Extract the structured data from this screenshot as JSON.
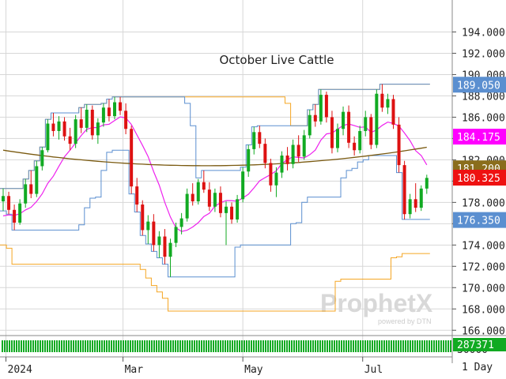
{
  "chart_data": {
    "type": "candlestick",
    "title": "October Live Cattle",
    "ylim": [
      165.5,
      197.0
    ],
    "y_ticks": [
      "194.000",
      "192.000",
      "190.000",
      "188.000",
      "186.000",
      "184.000",
      "182.000",
      "180.000",
      "178.000",
      "176.000",
      "174.000",
      "172.000",
      "170.000",
      "168.000",
      "166.000"
    ],
    "y_tick_values": [
      194,
      192,
      190,
      188,
      186,
      184,
      182,
      180,
      178,
      176,
      174,
      172,
      170,
      168,
      166
    ],
    "x_labels": [
      {
        "label": "2024",
        "x": 0.5
      },
      {
        "label": "Mar",
        "x": 21.5
      },
      {
        "label": "May",
        "x": 43
      },
      {
        "label": "Jul",
        "x": 64.5
      }
    ],
    "x_range": [
      0,
      80
    ],
    "price_badges": [
      {
        "label": "189.050",
        "value": 189.05,
        "bg": "#5b8fd0",
        "fg": "#ffffff"
      },
      {
        "label": "184.175",
        "value": 184.175,
        "bg": "#ff00ff",
        "fg": "#ffffff"
      },
      {
        "label": "181.200",
        "value": 181.2,
        "bg": "#8a6d1c",
        "fg": "#ffffff"
      },
      {
        "label": "180.325",
        "value": 180.325,
        "bg": "#ee1111",
        "fg": "#ffffff"
      },
      {
        "label": "176.350",
        "value": 176.35,
        "bg": "#5b8fd0",
        "fg": "#ffffff"
      }
    ],
    "volume_label": "287371",
    "volume_axis_label": "30000",
    "period_label": "1 Day",
    "watermark": "ProphetX",
    "watermark_sub": "powered by DTN",
    "colors": {
      "up": "#11aa22",
      "down": "#dd1111",
      "ma_short": "#ee22ee",
      "ma_long": "#7a5a10",
      "band_upper": "#f5a623",
      "band_inner": "#5b8fd0",
      "grid": "#d7d7d7"
    },
    "ma_short_label": "",
    "candles": [
      [
        178.1,
        179.3,
        177.2,
        178.6
      ],
      [
        178.6,
        179.0,
        176.9,
        177.3
      ],
      [
        177.3,
        177.8,
        175.4,
        176.1
      ],
      [
        176.1,
        178.3,
        175.9,
        177.9
      ],
      [
        177.9,
        180.2,
        177.5,
        179.7
      ],
      [
        179.7,
        181.0,
        178.4,
        178.8
      ],
      [
        178.8,
        181.9,
        178.5,
        181.4
      ],
      [
        181.4,
        183.2,
        181.0,
        182.9
      ],
      [
        182.9,
        185.8,
        182.7,
        185.4
      ],
      [
        185.4,
        186.4,
        184.2,
        184.7
      ],
      [
        184.7,
        186.1,
        183.9,
        185.6
      ],
      [
        185.6,
        186.0,
        183.8,
        184.2
      ],
      [
        184.2,
        185.0,
        182.9,
        183.5
      ],
      [
        183.5,
        186.2,
        183.1,
        185.8
      ],
      [
        185.8,
        186.9,
        184.5,
        185.0
      ],
      [
        185.0,
        187.2,
        184.6,
        186.7
      ],
      [
        186.7,
        187.1,
        183.9,
        184.3
      ],
      [
        184.3,
        185.9,
        183.5,
        185.5
      ],
      [
        185.5,
        187.3,
        185.1,
        186.9
      ],
      [
        186.9,
        187.7,
        185.6,
        186.1
      ],
      [
        186.1,
        187.9,
        185.8,
        187.4
      ],
      [
        187.4,
        187.9,
        186.2,
        186.6
      ],
      [
        186.6,
        187.3,
        184.4,
        184.9
      ],
      [
        184.9,
        185.2,
        178.8,
        179.5
      ],
      [
        179.5,
        180.3,
        177.1,
        177.8
      ],
      [
        177.8,
        178.2,
        174.9,
        175.4
      ],
      [
        175.4,
        176.8,
        174.1,
        176.2
      ],
      [
        176.2,
        176.9,
        173.4,
        174.0
      ],
      [
        174.0,
        175.3,
        172.8,
        174.8
      ],
      [
        174.8,
        175.5,
        172.2,
        172.9
      ],
      [
        172.9,
        174.6,
        171.0,
        174.2
      ],
      [
        174.2,
        176.1,
        173.8,
        175.7
      ],
      [
        175.7,
        177.0,
        175.0,
        176.5
      ],
      [
        176.5,
        179.3,
        176.2,
        178.8
      ],
      [
        178.8,
        179.8,
        177.7,
        178.1
      ],
      [
        178.1,
        180.2,
        177.8,
        179.9
      ],
      [
        179.9,
        181.0,
        178.9,
        179.2
      ],
      [
        179.2,
        179.9,
        177.2,
        177.6
      ],
      [
        177.6,
        179.3,
        177.1,
        178.9
      ],
      [
        178.9,
        179.5,
        176.6,
        177.0
      ],
      [
        177.0,
        178.1,
        174.0,
        177.6
      ],
      [
        177.6,
        178.0,
        176.0,
        176.4
      ],
      [
        176.4,
        178.7,
        176.1,
        178.3
      ],
      [
        178.3,
        181.3,
        178.0,
        180.9
      ],
      [
        180.9,
        183.4,
        180.4,
        183.0
      ],
      [
        183.0,
        185.1,
        182.5,
        184.6
      ],
      [
        184.6,
        185.2,
        183.1,
        183.5
      ],
      [
        183.5,
        184.0,
        181.2,
        181.7
      ],
      [
        181.7,
        182.1,
        179.0,
        179.6
      ],
      [
        179.6,
        181.3,
        178.5,
        180.8
      ],
      [
        180.8,
        182.8,
        180.3,
        182.4
      ],
      [
        182.4,
        183.2,
        181.0,
        181.6
      ],
      [
        181.6,
        183.9,
        181.2,
        183.4
      ],
      [
        183.4,
        184.3,
        181.8,
        182.3
      ],
      [
        182.3,
        184.8,
        182.0,
        184.3
      ],
      [
        184.3,
        186.7,
        184.0,
        186.2
      ],
      [
        186.2,
        187.2,
        185.1,
        185.6
      ],
      [
        185.6,
        188.6,
        185.3,
        188.1
      ],
      [
        188.1,
        188.4,
        185.5,
        186.0
      ],
      [
        186.0,
        186.6,
        182.6,
        183.1
      ],
      [
        183.1,
        185.4,
        182.7,
        184.9
      ],
      [
        184.9,
        187.0,
        184.3,
        186.5
      ],
      [
        186.5,
        187.1,
        183.1,
        183.6
      ],
      [
        183.6,
        184.2,
        182.4,
        182.9
      ],
      [
        182.9,
        185.2,
        182.6,
        184.7
      ],
      [
        184.7,
        186.6,
        184.2,
        186.0
      ],
      [
        186.0,
        186.3,
        183.0,
        183.4
      ],
      [
        183.4,
        188.6,
        183.1,
        188.2
      ],
      [
        188.2,
        189.1,
        186.5,
        186.9
      ],
      [
        186.9,
        188.2,
        186.3,
        187.7
      ],
      [
        187.7,
        188.1,
        184.9,
        185.3
      ],
      [
        185.3,
        186.0,
        180.8,
        181.5
      ],
      [
        181.5,
        181.9,
        176.4,
        176.9
      ],
      [
        176.9,
        178.8,
        176.5,
        178.3
      ],
      [
        178.3,
        179.8,
        177.1,
        177.5
      ],
      [
        177.5,
        179.6,
        177.2,
        179.3
      ],
      [
        179.3,
        180.6,
        178.8,
        180.3
      ]
    ]
  }
}
